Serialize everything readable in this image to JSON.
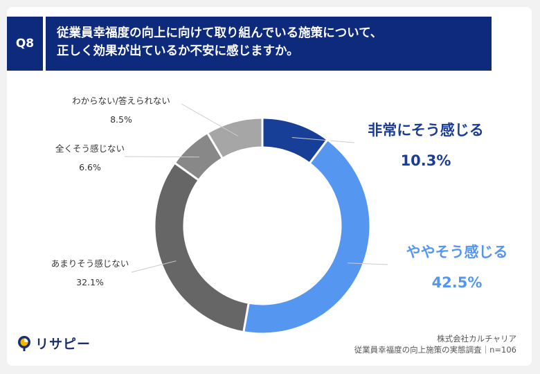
{
  "header": {
    "badge": "Q8",
    "question_line1": "従業員幸福度の向上に向けて取り組んでいる施策について、",
    "question_line2": "正しく効果が出ているか不安に感じますか。"
  },
  "chart_data": {
    "type": "pie",
    "donut": true,
    "categories": [
      "非常にそう感じる",
      "ややそう感じる",
      "あまりそう感じない",
      "全くそう感じない",
      "わからない/答えられない"
    ],
    "values": [
      10.3,
      42.5,
      32.1,
      6.6,
      8.5
    ],
    "value_labels": [
      "10.3%",
      "42.5%",
      "32.1%",
      "6.6%",
      "8.5%"
    ],
    "colors": [
      "#183f98",
      "#5596f0",
      "#666666",
      "#888888",
      "#a6a6a6"
    ]
  },
  "branding": {
    "logo_text": "リサピー"
  },
  "source": {
    "line1": "株式会社カルチャリア",
    "line2": "従業員幸福度の向上施策の実態調査｜n=106"
  }
}
